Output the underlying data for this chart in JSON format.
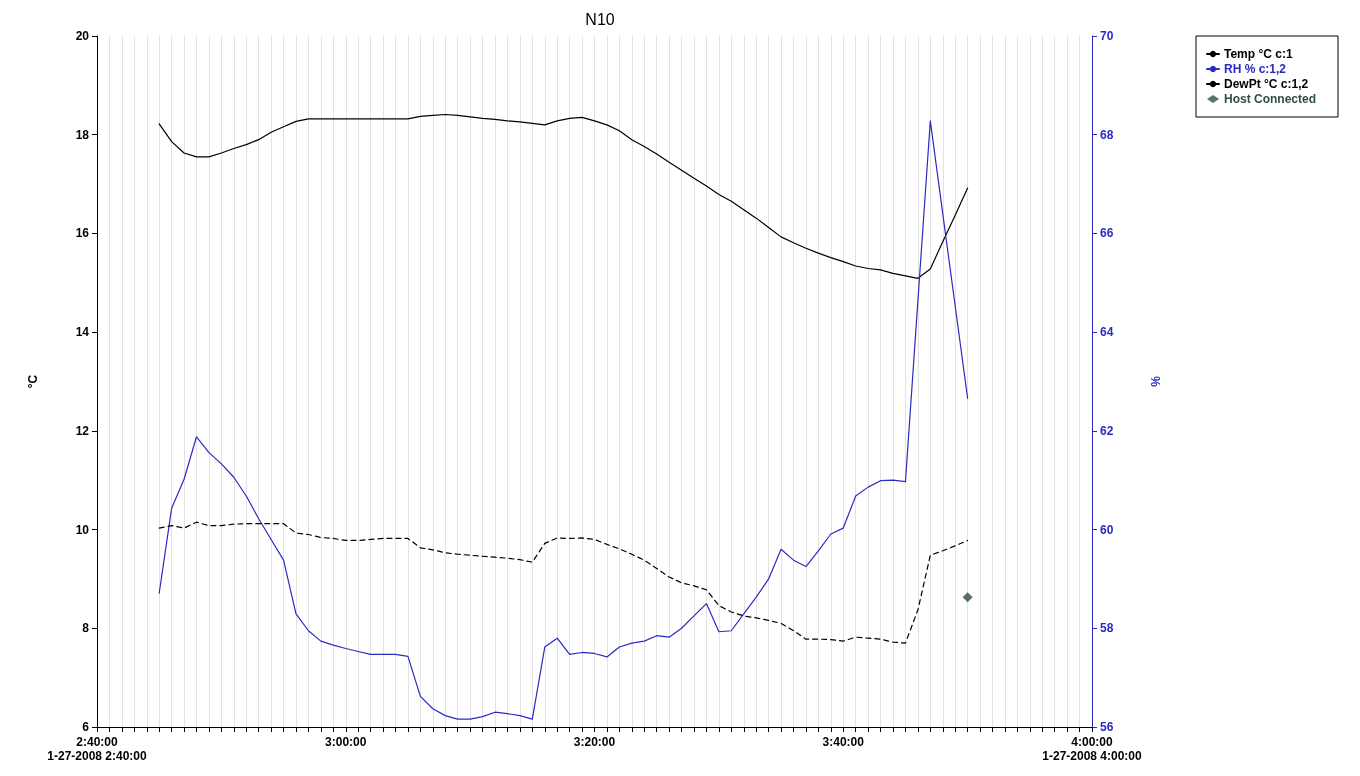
{
  "chart_data": {
    "type": "line",
    "title": "N10",
    "ylabel": "°C",
    "y2label": "%",
    "x": [
      "2008-01-27T02:45",
      "2008-01-27T02:46",
      "2008-01-27T02:47",
      "2008-01-27T02:48",
      "2008-01-27T02:49",
      "2008-01-27T02:50",
      "2008-01-27T02:51",
      "2008-01-27T02:52",
      "2008-01-27T02:53",
      "2008-01-27T02:54",
      "2008-01-27T02:55",
      "2008-01-27T02:56",
      "2008-01-27T02:57",
      "2008-01-27T02:58",
      "2008-01-27T02:59",
      "2008-01-27T03:00",
      "2008-01-27T03:01",
      "2008-01-27T03:02",
      "2008-01-27T03:03",
      "2008-01-27T03:04",
      "2008-01-27T03:05",
      "2008-01-27T03:06",
      "2008-01-27T03:07",
      "2008-01-27T03:08",
      "2008-01-27T03:09",
      "2008-01-27T03:10",
      "2008-01-27T03:11",
      "2008-01-27T03:12",
      "2008-01-27T03:13",
      "2008-01-27T03:14",
      "2008-01-27T03:15",
      "2008-01-27T03:16",
      "2008-01-27T03:17",
      "2008-01-27T03:18",
      "2008-01-27T03:19",
      "2008-01-27T03:20",
      "2008-01-27T03:21",
      "2008-01-27T03:22",
      "2008-01-27T03:23",
      "2008-01-27T03:24",
      "2008-01-27T03:25",
      "2008-01-27T03:26",
      "2008-01-27T03:27",
      "2008-01-27T03:28",
      "2008-01-27T03:29",
      "2008-01-27T03:30",
      "2008-01-27T03:31",
      "2008-01-27T03:32",
      "2008-01-27T03:33",
      "2008-01-27T03:34",
      "2008-01-27T03:35",
      "2008-01-27T03:36",
      "2008-01-27T03:37",
      "2008-01-27T03:38",
      "2008-01-27T03:39",
      "2008-01-27T03:40",
      "2008-01-27T03:41",
      "2008-01-27T03:42",
      "2008-01-27T03:43",
      "2008-01-27T03:44",
      "2008-01-27T03:45",
      "2008-01-27T03:46",
      "2008-01-27T03:47",
      "2008-01-27T03:48",
      "2008-01-27T03:49",
      "2008-01-27T03:50"
    ],
    "series": [
      {
        "name": "Temp °C c:1",
        "color": "#000000",
        "values": [
          18.22,
          17.86,
          17.63,
          17.55,
          17.55,
          17.63,
          17.72,
          17.8,
          17.9,
          18.05,
          18.16,
          18.27,
          18.32,
          18.32,
          18.32,
          18.32,
          18.32,
          18.32,
          18.32,
          18.32,
          18.32,
          18.37,
          18.39,
          18.41,
          18.39,
          18.36,
          18.33,
          18.31,
          18.28,
          18.26,
          18.23,
          18.2,
          18.28,
          18.33,
          18.35,
          18.28,
          18.2,
          18.08,
          17.9,
          17.76,
          17.61,
          17.44,
          17.28,
          17.12,
          16.96,
          16.79,
          16.65,
          16.48,
          16.31,
          16.12,
          15.93,
          15.81,
          15.7,
          15.6,
          15.51,
          15.43,
          15.34,
          15.29,
          15.26,
          15.19,
          15.14,
          15.09,
          15.28,
          15.83,
          16.37,
          16.92
        ]
      },
      {
        "name": "RH % c:1,2",
        "color": "#2b2bc4",
        "axis": "y2",
        "values": [
          58.71,
          60.43,
          61.02,
          61.88,
          61.56,
          61.33,
          61.06,
          60.68,
          60.22,
          59.8,
          59.38,
          58.29,
          57.95,
          57.74,
          57.66,
          57.59,
          57.53,
          57.47,
          57.47,
          57.47,
          57.43,
          56.62,
          56.37,
          56.23,
          56.16,
          56.16,
          56.21,
          56.3,
          56.27,
          56.23,
          56.16,
          57.62,
          57.8,
          57.47,
          57.51,
          57.49,
          57.42,
          57.62,
          57.7,
          57.74,
          57.85,
          57.82,
          58.0,
          58.25,
          58.5,
          57.93,
          57.95,
          58.29,
          58.63,
          59.0,
          59.6,
          59.38,
          59.25,
          59.57,
          59.91,
          60.03,
          60.68,
          60.86,
          60.99,
          61.0,
          60.97,
          64.63,
          68.28,
          66.4,
          64.53,
          62.66
        ]
      },
      {
        "name": "DewPt °C c:1,2",
        "color": "#000000",
        "line_style": "dashed",
        "values": [
          10.03,
          10.08,
          10.03,
          10.15,
          10.08,
          10.08,
          10.11,
          10.12,
          10.12,
          10.12,
          10.12,
          9.93,
          9.9,
          9.84,
          9.82,
          9.78,
          9.78,
          9.8,
          9.82,
          9.82,
          9.82,
          9.63,
          9.59,
          9.53,
          9.5,
          9.48,
          9.46,
          9.44,
          9.42,
          9.39,
          9.34,
          9.72,
          9.83,
          9.82,
          9.83,
          9.8,
          9.7,
          9.61,
          9.5,
          9.38,
          9.21,
          9.04,
          8.92,
          8.86,
          8.78,
          8.46,
          8.33,
          8.25,
          8.21,
          8.16,
          8.1,
          7.95,
          7.78,
          7.78,
          7.77,
          7.74,
          7.82,
          7.8,
          7.78,
          7.72,
          7.7,
          8.37,
          9.48,
          9.57,
          9.67,
          9.78
        ]
      },
      {
        "name": "Host Connected",
        "type": "scatter",
        "marker": "diamond",
        "color": "#2f4f3f",
        "x": [
          "2008-01-27T03:50"
        ],
        "values": [
          8.63
        ]
      }
    ],
    "xlim": [
      "2008-01-27T02:40",
      "2008-01-27T04:00"
    ],
    "xticks": [
      {
        "value": "2008-01-27T02:40",
        "label": "2:40:00\n1-27-2008 2:40:00"
      },
      {
        "value": "2008-01-27T02:41",
        "label": null
      },
      {
        "value": "2008-01-27T02:42",
        "label": null
      },
      {
        "value": "2008-01-27T02:43",
        "label": null
      },
      {
        "value": "2008-01-27T02:44",
        "label": null
      },
      {
        "value": "2008-01-27T02:45",
        "label": null
      },
      {
        "value": "2008-01-27T02:46",
        "label": null
      },
      {
        "value": "2008-01-27T02:47",
        "label": null
      },
      {
        "value": "2008-01-27T02:48",
        "label": null
      },
      {
        "value": "2008-01-27T02:49",
        "label": null
      },
      {
        "value": "2008-01-27T02:50",
        "label": null
      },
      {
        "value": "2008-01-27T02:51",
        "label": null
      },
      {
        "value": "2008-01-27T02:52",
        "label": null
      },
      {
        "value": "2008-01-27T02:53",
        "label": null
      },
      {
        "value": "2008-01-27T02:54",
        "label": null
      },
      {
        "value": "2008-01-27T02:55",
        "label": null
      },
      {
        "value": "2008-01-27T02:56",
        "label": null
      },
      {
        "value": "2008-01-27T02:57",
        "label": null
      },
      {
        "value": "2008-01-27T02:58",
        "label": null
      },
      {
        "value": "2008-01-27T02:59",
        "label": null
      },
      {
        "value": "2008-01-27T03:00",
        "label": "3:00:00"
      },
      {
        "value": "2008-01-27T03:01",
        "label": null
      },
      {
        "value": "2008-01-27T03:02",
        "label": null
      },
      {
        "value": "2008-01-27T03:03",
        "label": null
      },
      {
        "value": "2008-01-27T03:04",
        "label": null
      },
      {
        "value": "2008-01-27T03:05",
        "label": null
      },
      {
        "value": "2008-01-27T03:06",
        "label": null
      },
      {
        "value": "2008-01-27T03:07",
        "label": null
      },
      {
        "value": "2008-01-27T03:08",
        "label": null
      },
      {
        "value": "2008-01-27T03:09",
        "label": null
      },
      {
        "value": "2008-01-27T03:10",
        "label": null
      },
      {
        "value": "2008-01-27T03:11",
        "label": null
      },
      {
        "value": "2008-01-27T03:12",
        "label": null
      },
      {
        "value": "2008-01-27T03:13",
        "label": null
      },
      {
        "value": "2008-01-27T03:14",
        "label": null
      },
      {
        "value": "2008-01-27T03:15",
        "label": null
      },
      {
        "value": "2008-01-27T03:16",
        "label": null
      },
      {
        "value": "2008-01-27T03:17",
        "label": null
      },
      {
        "value": "2008-01-27T03:18",
        "label": null
      },
      {
        "value": "2008-01-27T03:19",
        "label": null
      },
      {
        "value": "2008-01-27T03:20",
        "label": "3:20:00"
      },
      {
        "value": "2008-01-27T03:21",
        "label": null
      },
      {
        "value": "2008-01-27T03:22",
        "label": null
      },
      {
        "value": "2008-01-27T03:23",
        "label": null
      },
      {
        "value": "2008-01-27T03:24",
        "label": null
      },
      {
        "value": "2008-01-27T03:25",
        "label": null
      },
      {
        "value": "2008-01-27T03:26",
        "label": null
      },
      {
        "value": "2008-01-27T03:27",
        "label": null
      },
      {
        "value": "2008-01-27T03:28",
        "label": null
      },
      {
        "value": "2008-01-27T03:29",
        "label": null
      },
      {
        "value": "2008-01-27T03:30",
        "label": null
      },
      {
        "value": "2008-01-27T03:31",
        "label": null
      },
      {
        "value": "2008-01-27T03:32",
        "label": null
      },
      {
        "value": "2008-01-27T03:33",
        "label": null
      },
      {
        "value": "2008-01-27T03:34",
        "label": null
      },
      {
        "value": "2008-01-27T03:35",
        "label": null
      },
      {
        "value": "2008-01-27T03:36",
        "label": null
      },
      {
        "value": "2008-01-27T03:37",
        "label": null
      },
      {
        "value": "2008-01-27T03:38",
        "label": null
      },
      {
        "value": "2008-01-27T03:39",
        "label": null
      },
      {
        "value": "2008-01-27T03:40",
        "label": "3:40:00"
      },
      {
        "value": "2008-01-27T03:41",
        "label": null
      },
      {
        "value": "2008-01-27T03:42",
        "label": null
      },
      {
        "value": "2008-01-27T03:43",
        "label": null
      },
      {
        "value": "2008-01-27T03:44",
        "label": null
      },
      {
        "value": "2008-01-27T03:45",
        "label": null
      },
      {
        "value": "2008-01-27T03:46",
        "label": null
      },
      {
        "value": "2008-01-27T03:47",
        "label": null
      },
      {
        "value": "2008-01-27T03:48",
        "label": null
      },
      {
        "value": "2008-01-27T03:49",
        "label": null
      },
      {
        "value": "2008-01-27T03:50",
        "label": null
      },
      {
        "value": "2008-01-27T03:51",
        "label": null
      },
      {
        "value": "2008-01-27T03:52",
        "label": null
      },
      {
        "value": "2008-01-27T03:53",
        "label": null
      },
      {
        "value": "2008-01-27T03:54",
        "label": null
      },
      {
        "value": "2008-01-27T03:55",
        "label": null
      },
      {
        "value": "2008-01-27T03:56",
        "label": null
      },
      {
        "value": "2008-01-27T03:57",
        "label": null
      },
      {
        "value": "2008-01-27T03:58",
        "label": null
      },
      {
        "value": "2008-01-27T03:59",
        "label": null
      },
      {
        "value": "2008-01-27T04:00",
        "label": "4:00:00\n1-27-2008 4:00:00"
      }
    ],
    "ylim": [
      6,
      20
    ],
    "yticks": [
      6,
      8,
      10,
      12,
      14,
      16,
      18,
      20
    ],
    "y2lim": [
      56,
      70
    ],
    "y2ticks": [
      56,
      58,
      60,
      62,
      64,
      66,
      68,
      70
    ],
    "grid": "x",
    "legend": "top right",
    "marker": "none",
    "line_style": "solid"
  }
}
